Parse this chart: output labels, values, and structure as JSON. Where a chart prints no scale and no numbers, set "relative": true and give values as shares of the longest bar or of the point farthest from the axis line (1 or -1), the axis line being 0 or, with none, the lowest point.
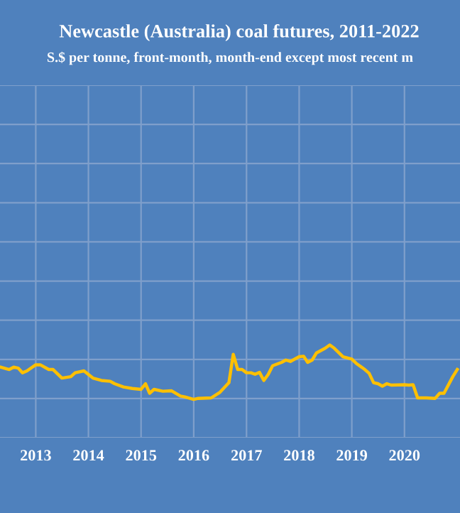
{
  "chart_data": {
    "type": "line",
    "title": "Newcastle (Australia) coal futures, 2011-2022",
    "subtitle": "S.$ per tonne, front-month, month-end except most recent m",
    "relative": true,
    "grid": true,
    "xlim": [
      "2012-04-28",
      "2021-01-20"
    ],
    "xticks": [
      {
        "value": "2013-01-01",
        "label": "2013"
      },
      {
        "value": "2014-01-01",
        "label": "2014"
      },
      {
        "value": "2015-01-01",
        "label": "2015"
      },
      {
        "value": "2016-01-01",
        "label": "2016"
      },
      {
        "value": "2017-01-01",
        "label": "2017"
      },
      {
        "value": "2018-01-01",
        "label": "2018"
      },
      {
        "value": "2019-01-01",
        "label": "2019"
      },
      {
        "value": "2020-01-01",
        "label": "2020"
      }
    ],
    "x": [
      "2012-05",
      "2012-07",
      "2012-08",
      "2012-09",
      "2012-10",
      "2012-11",
      "2013-01",
      "2013-02",
      "2013-04",
      "2013-05",
      "2013-07",
      "2013-09",
      "2013-10",
      "2013-12",
      "2014-02",
      "2014-04",
      "2014-06",
      "2014-07",
      "2014-09",
      "2014-11",
      "2015-01",
      "2015-02",
      "2015-03",
      "2015-04",
      "2015-06",
      "2015-08",
      "2015-10",
      "2015-11",
      "2016-01",
      "2016-02",
      "2016-05",
      "2016-07",
      "2016-09",
      "2016-10",
      "2016-11",
      "2016-12",
      "2017-01",
      "2017-02",
      "2017-03",
      "2017-04",
      "2017-05",
      "2017-06",
      "2017-07",
      "2017-09",
      "2017-10",
      "2017-11",
      "2018-01",
      "2018-02",
      "2018-03",
      "2018-04",
      "2018-05",
      "2018-07",
      "2018-08",
      "2018-09",
      "2018-11",
      "2019-01",
      "2019-02",
      "2019-04",
      "2019-05",
      "2019-06",
      "2019-07",
      "2019-08",
      "2019-09",
      "2019-10",
      "2020-01",
      "2020-02",
      "2020-03",
      "2020-04",
      "2020-06",
      "2020-08",
      "2020-09",
      "2020-10",
      "2020-12",
      "2021-01"
    ],
    "series": [
      {
        "color": "#ffc000",
        "values": [
          0.761,
          0.735,
          0.761,
          0.75,
          0.7,
          0.72,
          0.786,
          0.786,
          0.735,
          0.735,
          0.643,
          0.658,
          0.7,
          0.72,
          0.643,
          0.617,
          0.608,
          0.582,
          0.547,
          0.531,
          0.521,
          0.582,
          0.479,
          0.521,
          0.501,
          0.505,
          0.449,
          0.439,
          0.413,
          0.424,
          0.429,
          0.49,
          0.593,
          0.899,
          0.735,
          0.735,
          0.7,
          0.7,
          0.684,
          0.704,
          0.617,
          0.684,
          0.776,
          0.812,
          0.837,
          0.822,
          0.873,
          0.878,
          0.812,
          0.837,
          0.914,
          0.965,
          1.0,
          0.965,
          0.873,
          0.847,
          0.801,
          0.735,
          0.694,
          0.593,
          0.582,
          0.556,
          0.582,
          0.567,
          0.571,
          0.567,
          0.571,
          0.429,
          0.429,
          0.424,
          0.479,
          0.479,
          0.658,
          0.735
        ]
      }
    ]
  }
}
